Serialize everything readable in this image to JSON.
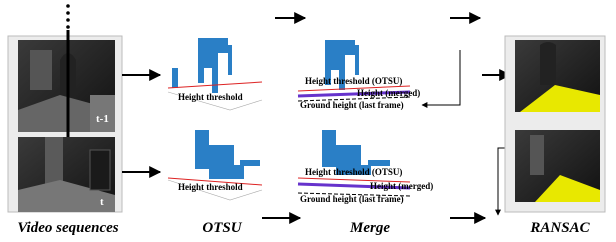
{
  "columns": [
    {
      "label": "Video sequences",
      "frames": [
        "t-1",
        "t"
      ]
    },
    {
      "label": "OTSU",
      "annotations": [
        "Height threshold",
        "Height threshold"
      ]
    },
    {
      "label": "Merge",
      "panels": [
        {
          "threshold": "Height threshold (OTSU)",
          "merged": "Height (merged)",
          "ground": "Ground height (last frame)"
        },
        {
          "threshold": "Height threshold (OTSU)",
          "merged": "Height (merged)",
          "ground": "Ground height (last frame)"
        }
      ]
    },
    {
      "label": "RANSAC"
    }
  ]
}
